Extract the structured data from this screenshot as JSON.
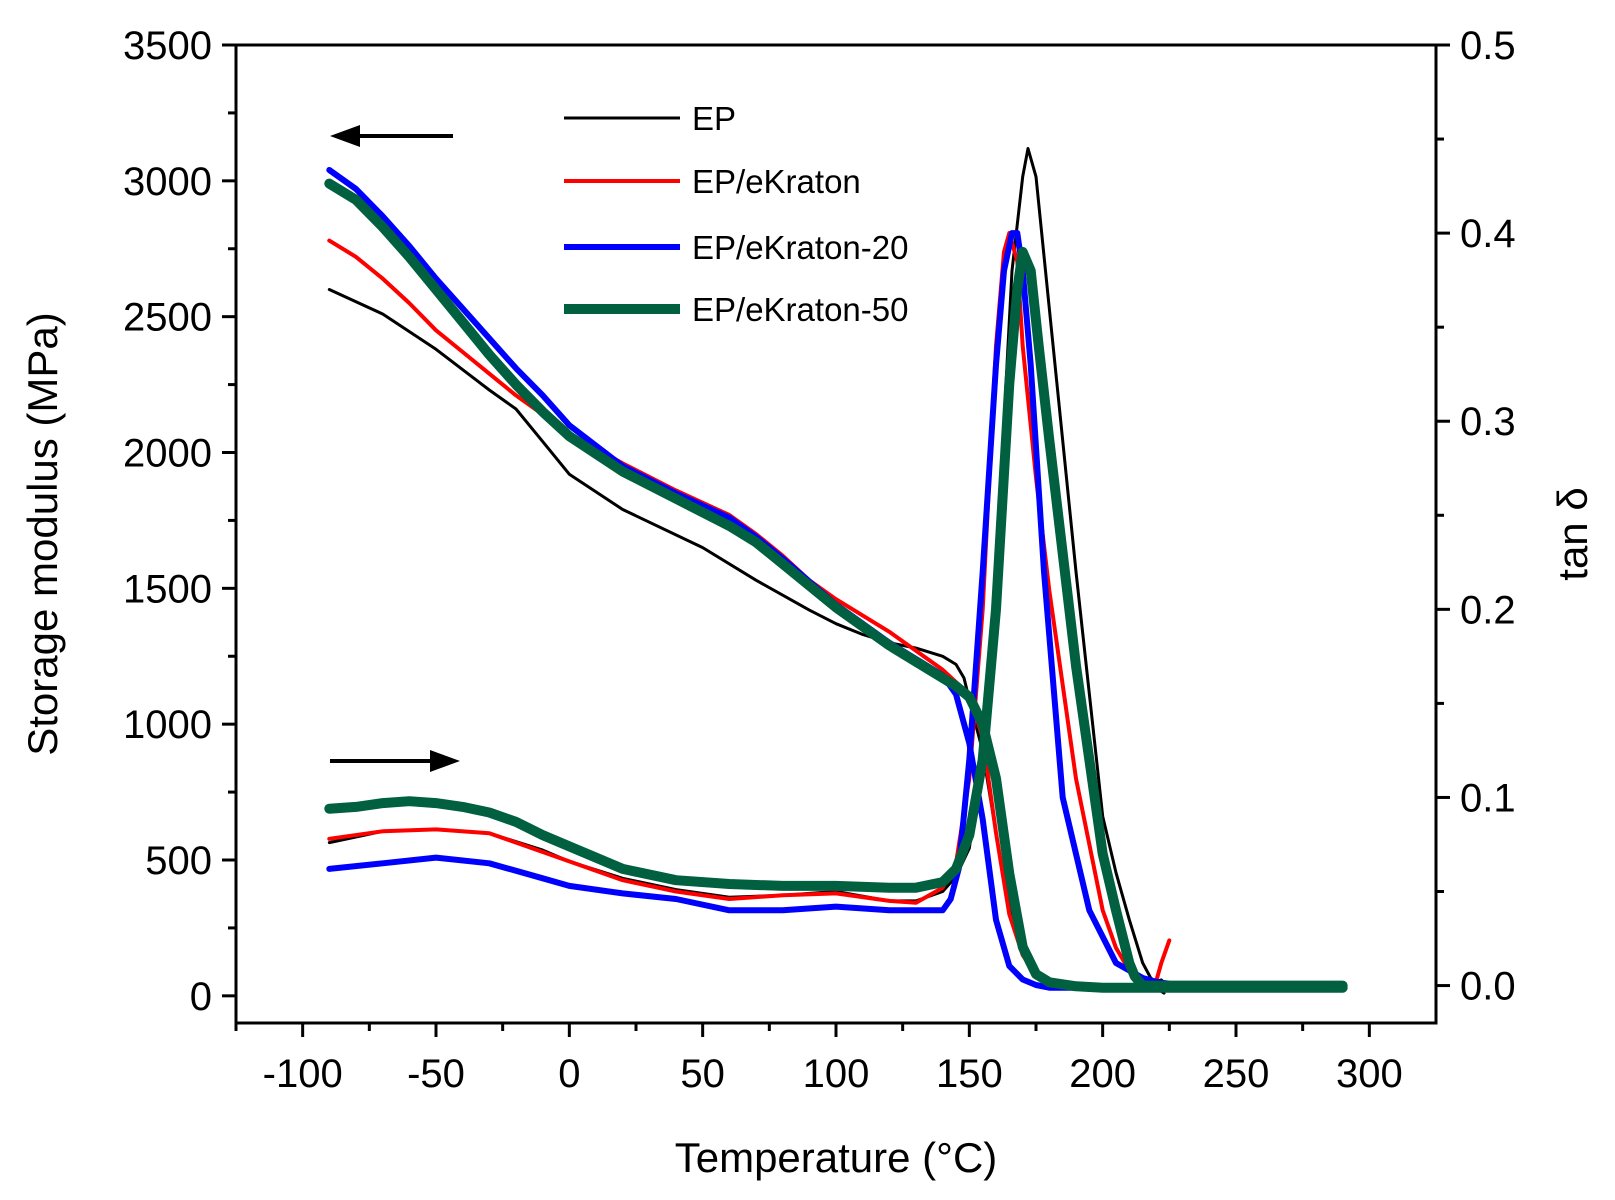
{
  "chart_data": {
    "type": "line",
    "title": "",
    "xlabel": "Temperature (°C)",
    "ylabel": "Storage modulus (MPa)",
    "y2label": "tan δ",
    "xlim": [
      -125,
      325
    ],
    "ylim": [
      -100,
      3500
    ],
    "y2lim": [
      -0.0199,
      0.5
    ],
    "xticks": [
      -100,
      -50,
      0,
      50,
      100,
      150,
      200,
      250,
      300
    ],
    "yticks": [
      0,
      500,
      1000,
      1500,
      2000,
      2500,
      3000,
      3500
    ],
    "y2ticks": [
      0.0,
      0.1,
      0.2,
      0.3,
      0.4,
      0.5
    ],
    "xtick_labels": [
      "-100",
      "-50",
      "0",
      "50",
      "100",
      "150",
      "200",
      "250",
      "300"
    ],
    "ytick_labels": [
      "0",
      "500",
      "1000",
      "1500",
      "2000",
      "2500",
      "3000",
      "3500"
    ],
    "y2tick_labels": [
      "0.0",
      "0.1",
      "0.2",
      "0.3",
      "0.4",
      "0.5"
    ],
    "grid": false,
    "legend_position": "top-center",
    "annotations": [
      {
        "name": "arrow-left-axis",
        "points_to": "left",
        "x": [
          -40,
          -90
        ],
        "y": 3165
      },
      {
        "name": "arrow-right-axis",
        "points_to": "right",
        "x": [
          -90,
          -40
        ],
        "y": 860
      }
    ],
    "series": [
      {
        "name": "EP",
        "color": "#000000",
        "width": 3,
        "modulus": {
          "x": [
            -90,
            -70,
            -50,
            -30,
            -20,
            -10,
            0,
            20,
            50,
            70,
            90,
            100,
            110,
            120,
            130,
            140,
            145,
            148,
            150,
            155,
            160,
            165,
            170,
            175,
            180,
            190,
            200,
            210,
            215,
            220,
            223
          ],
          "y": [
            2600,
            2510,
            2380,
            2230,
            2160,
            2040,
            1920,
            1790,
            1650,
            1530,
            1420,
            1370,
            1330,
            1300,
            1280,
            1250,
            1220,
            1170,
            1090,
            900,
            600,
            320,
            160,
            90,
            55,
            38,
            35,
            35,
            35,
            30,
            10
          ]
        },
        "tan_delta": {
          "x": [
            -90,
            -70,
            -50,
            -30,
            -10,
            0,
            20,
            40,
            60,
            80,
            100,
            120,
            130,
            140,
            145,
            150,
            155,
            160,
            163,
            166,
            170,
            172,
            175,
            180,
            190,
            200,
            205,
            210,
            215,
            218,
            220,
            222,
            224
          ],
          "y": [
            0.076,
            0.082,
            0.083,
            0.081,
            0.072,
            0.066,
            0.057,
            0.051,
            0.047,
            0.048,
            0.05,
            0.045,
            0.045,
            0.05,
            0.058,
            0.073,
            0.118,
            0.22,
            0.3,
            0.38,
            0.43,
            0.445,
            0.43,
            0.36,
            0.22,
            0.09,
            0.06,
            0.035,
            0.012,
            0.004,
            0.002,
            0.003,
            0.0
          ]
        }
      },
      {
        "name": "EP/eKraton",
        "color": "#ff0000",
        "width": 4,
        "modulus": {
          "x": [
            -90,
            -80,
            -70,
            -60,
            -50,
            -40,
            -30,
            -20,
            -10,
            0,
            20,
            40,
            60,
            70,
            80,
            90,
            100,
            120,
            140,
            150,
            155,
            160,
            165,
            170,
            175,
            180,
            190,
            200,
            210
          ],
          "y": [
            2780,
            2720,
            2640,
            2550,
            2450,
            2370,
            2290,
            2210,
            2140,
            2070,
            1960,
            1860,
            1770,
            1700,
            1620,
            1530,
            1460,
            1340,
            1200,
            1110,
            950,
            600,
            300,
            150,
            80,
            50,
            35,
            30,
            30
          ]
        },
        "tan_delta": {
          "x": [
            -90,
            -70,
            -50,
            -30,
            -10,
            0,
            20,
            40,
            60,
            80,
            100,
            120,
            130,
            140,
            145,
            150,
            155,
            160,
            163,
            165,
            168,
            170,
            175,
            180,
            190,
            200,
            205,
            210,
            215,
            218,
            220,
            222,
            225
          ],
          "y": [
            0.078,
            0.082,
            0.083,
            0.081,
            0.071,
            0.066,
            0.056,
            0.05,
            0.046,
            0.048,
            0.049,
            0.045,
            0.044,
            0.052,
            0.065,
            0.11,
            0.2,
            0.34,
            0.39,
            0.4,
            0.385,
            0.34,
            0.27,
            0.21,
            0.11,
            0.04,
            0.02,
            0.008,
            0.004,
            0.002,
            0.002,
            0.012,
            0.024
          ]
        }
      },
      {
        "name": "EP/eKraton-20",
        "color": "#0000ff",
        "width": 6,
        "modulus": {
          "x": [
            -90,
            -80,
            -70,
            -60,
            -50,
            -40,
            -30,
            -20,
            -10,
            0,
            20,
            40,
            60,
            70,
            80,
            100,
            120,
            140,
            145,
            150,
            155,
            160,
            165,
            170,
            175,
            180,
            190,
            200,
            210,
            220,
            225
          ],
          "y": [
            3040,
            2970,
            2870,
            2760,
            2640,
            2530,
            2420,
            2310,
            2210,
            2100,
            1950,
            1850,
            1760,
            1690,
            1610,
            1440,
            1300,
            1180,
            1110,
            930,
            650,
            280,
            110,
            60,
            40,
            30,
            30,
            30,
            30,
            30,
            30
          ]
        },
        "tan_delta": {
          "x": [
            -90,
            -70,
            -50,
            -30,
            -10,
            0,
            20,
            40,
            60,
            80,
            100,
            120,
            130,
            140,
            143,
            146,
            150,
            155,
            160,
            163,
            166,
            168,
            170,
            173,
            178,
            185,
            195,
            205,
            215,
            220,
            225
          ],
          "y": [
            0.062,
            0.065,
            0.068,
            0.065,
            0.057,
            0.053,
            0.049,
            0.046,
            0.04,
            0.04,
            0.042,
            0.04,
            0.04,
            0.04,
            0.046,
            0.062,
            0.12,
            0.22,
            0.33,
            0.38,
            0.4,
            0.4,
            0.38,
            0.33,
            0.22,
            0.1,
            0.04,
            0.012,
            0.004,
            0.002,
            0.001
          ]
        }
      },
      {
        "name": "EP/eKraton-50",
        "color": "#006040",
        "width": 10,
        "modulus": {
          "x": [
            -90,
            -80,
            -70,
            -60,
            -50,
            -40,
            -30,
            -20,
            -10,
            0,
            20,
            40,
            60,
            70,
            80,
            100,
            120,
            130,
            140,
            145,
            150,
            155,
            160,
            165,
            170,
            175,
            180,
            190,
            200,
            210,
            220,
            250,
            290
          ],
          "y": [
            2990,
            2930,
            2830,
            2720,
            2600,
            2480,
            2360,
            2250,
            2150,
            2060,
            1930,
            1830,
            1730,
            1670,
            1590,
            1430,
            1290,
            1230,
            1170,
            1140,
            1100,
            1000,
            800,
            450,
            180,
            80,
            50,
            35,
            30,
            30,
            30,
            30,
            30
          ]
        },
        "tan_delta": {
          "x": [
            -90,
            -80,
            -70,
            -60,
            -50,
            -40,
            -30,
            -20,
            -10,
            0,
            20,
            40,
            60,
            80,
            100,
            120,
            130,
            140,
            145,
            150,
            155,
            160,
            165,
            168,
            170,
            173,
            176,
            180,
            190,
            200,
            205,
            210,
            212,
            215,
            220,
            250,
            290
          ],
          "y": [
            0.094,
            0.095,
            0.097,
            0.098,
            0.097,
            0.095,
            0.092,
            0.087,
            0.08,
            0.074,
            0.062,
            0.056,
            0.054,
            0.053,
            0.053,
            0.052,
            0.052,
            0.055,
            0.062,
            0.08,
            0.12,
            0.2,
            0.32,
            0.37,
            0.39,
            0.38,
            0.34,
            0.29,
            0.17,
            0.07,
            0.04,
            0.012,
            0.005,
            0.0,
            0.0,
            0.0,
            0.0
          ]
        }
      }
    ]
  }
}
